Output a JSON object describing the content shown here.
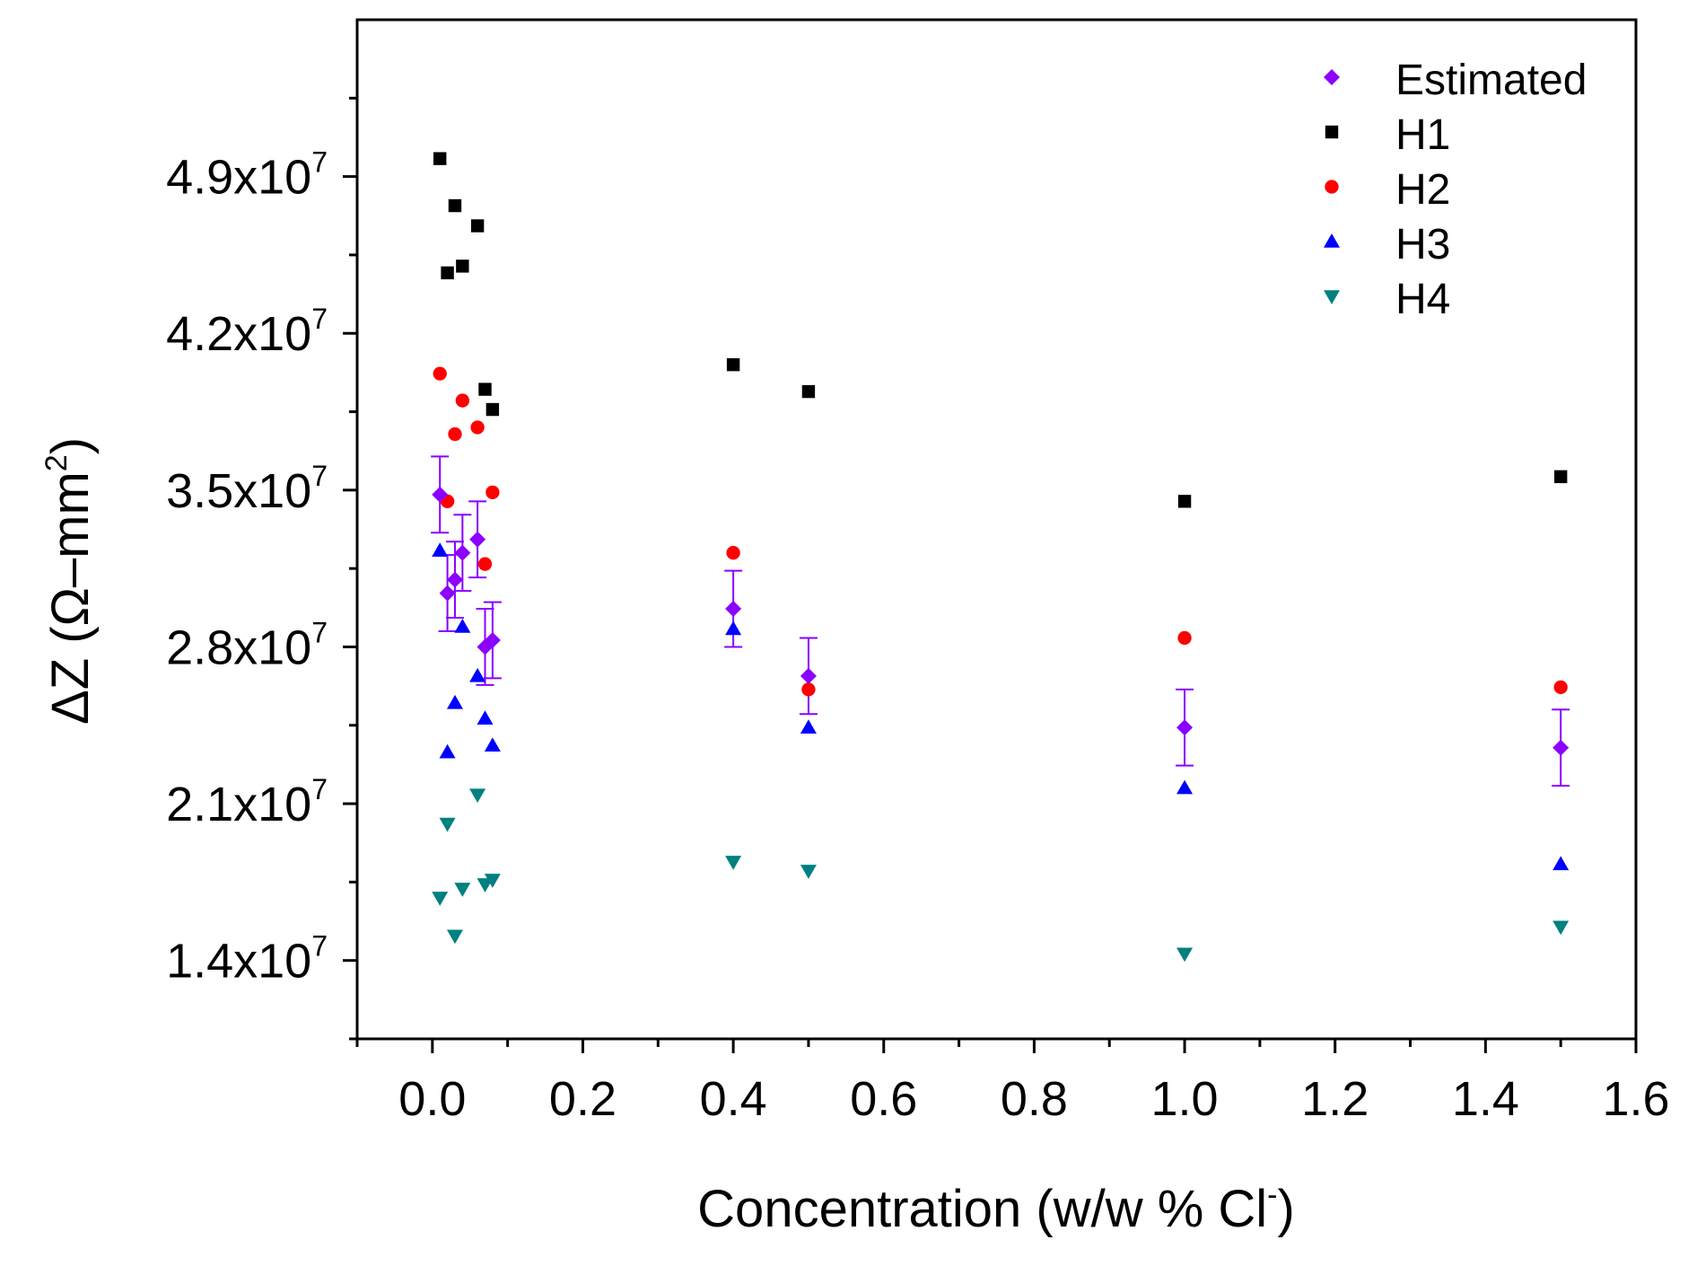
{
  "chart_data": {
    "type": "scatter",
    "title": "",
    "xlabel": "Concentration (w/w % Cl",
    "xlabel_superscript": "-",
    "xlabel_suffix": ")",
    "ylabel": "ΔZ (Ω–mm",
    "ylabel_superscript": "2",
    "ylabel_suffix": ")",
    "xlim": [
      -0.1,
      1.6
    ],
    "ylim": [
      10500000,
      56000000
    ],
    "x_ticks": [
      0.0,
      0.2,
      0.4,
      0.6,
      0.8,
      1.0,
      1.2,
      1.4,
      1.6
    ],
    "x_tick_labels": [
      "0.0",
      "0.2",
      "0.4",
      "0.6",
      "0.8",
      "1.0",
      "1.2",
      "1.4",
      "1.6"
    ],
    "y_ticks": [
      14000000,
      21000000,
      28000000,
      35000000,
      42000000,
      49000000
    ],
    "y_tick_mantissas": [
      "1.4x10",
      "2.1x10",
      "2.8x10",
      "3.5x10",
      "4.2x10",
      "4.9x10"
    ],
    "y_tick_exponent": "7",
    "grid": false,
    "legend_position": "top-right",
    "series": [
      {
        "name": "Estimated",
        "marker": "diamond",
        "color": "#8B00FF",
        "points": [
          {
            "x": 0.01,
            "y": 34800000,
            "err": 1700000
          },
          {
            "x": 0.02,
            "y": 30400000,
            "err": 1700000
          },
          {
            "x": 0.03,
            "y": 31000000,
            "err": 1700000
          },
          {
            "x": 0.04,
            "y": 32200000,
            "err": 1700000
          },
          {
            "x": 0.06,
            "y": 32800000,
            "err": 1700000
          },
          {
            "x": 0.07,
            "y": 28000000,
            "err": 1700000
          },
          {
            "x": 0.08,
            "y": 28300000,
            "err": 1700000
          },
          {
            "x": 0.4,
            "y": 29700000,
            "err": 1700000
          },
          {
            "x": 0.5,
            "y": 26700000,
            "err": 1700000
          },
          {
            "x": 1.0,
            "y": 24400000,
            "err": 1700000
          },
          {
            "x": 1.5,
            "y": 23500000,
            "err": 1700000
          }
        ]
      },
      {
        "name": "H1",
        "marker": "square",
        "color": "#000000",
        "points": [
          {
            "x": 0.01,
            "y": 49800000
          },
          {
            "x": 0.02,
            "y": 44700000
          },
          {
            "x": 0.03,
            "y": 47700000
          },
          {
            "x": 0.04,
            "y": 45000000
          },
          {
            "x": 0.06,
            "y": 46800000
          },
          {
            "x": 0.07,
            "y": 39500000
          },
          {
            "x": 0.08,
            "y": 38600000
          },
          {
            "x": 0.4,
            "y": 40600000
          },
          {
            "x": 0.5,
            "y": 39400000
          },
          {
            "x": 1.0,
            "y": 34500000
          },
          {
            "x": 1.5,
            "y": 35600000
          }
        ]
      },
      {
        "name": "H2",
        "marker": "circle",
        "color": "#FF0000",
        "points": [
          {
            "x": 0.01,
            "y": 40200000
          },
          {
            "x": 0.02,
            "y": 34500000
          },
          {
            "x": 0.03,
            "y": 37500000
          },
          {
            "x": 0.04,
            "y": 39000000
          },
          {
            "x": 0.06,
            "y": 37800000
          },
          {
            "x": 0.07,
            "y": 31700000
          },
          {
            "x": 0.08,
            "y": 34900000
          },
          {
            "x": 0.4,
            "y": 32200000
          },
          {
            "x": 0.5,
            "y": 26100000
          },
          {
            "x": 1.0,
            "y": 28400000
          },
          {
            "x": 1.5,
            "y": 26200000
          }
        ]
      },
      {
        "name": "H3",
        "marker": "triangle-up",
        "color": "#0000FF",
        "points": [
          {
            "x": 0.01,
            "y": 32300000
          },
          {
            "x": 0.02,
            "y": 23300000
          },
          {
            "x": 0.03,
            "y": 25500000
          },
          {
            "x": 0.04,
            "y": 28900000
          },
          {
            "x": 0.06,
            "y": 26700000
          },
          {
            "x": 0.07,
            "y": 24800000
          },
          {
            "x": 0.08,
            "y": 23600000
          },
          {
            "x": 0.4,
            "y": 28800000
          },
          {
            "x": 0.5,
            "y": 24400000
          },
          {
            "x": 1.0,
            "y": 21700000
          },
          {
            "x": 1.5,
            "y": 18300000
          }
        ]
      },
      {
        "name": "H4",
        "marker": "triangle-down",
        "color": "#008080",
        "points": [
          {
            "x": 0.01,
            "y": 16800000
          },
          {
            "x": 0.02,
            "y": 20100000
          },
          {
            "x": 0.03,
            "y": 15100000
          },
          {
            "x": 0.04,
            "y": 17200000
          },
          {
            "x": 0.06,
            "y": 21400000
          },
          {
            "x": 0.07,
            "y": 17400000
          },
          {
            "x": 0.08,
            "y": 17600000
          },
          {
            "x": 0.4,
            "y": 18400000
          },
          {
            "x": 0.5,
            "y": 18000000
          },
          {
            "x": 1.0,
            "y": 14300000
          },
          {
            "x": 1.5,
            "y": 15500000
          }
        ]
      }
    ]
  }
}
